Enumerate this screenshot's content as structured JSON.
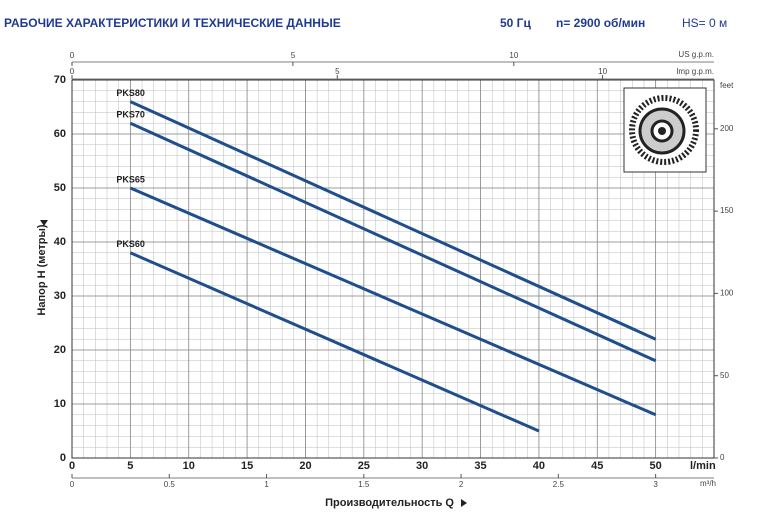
{
  "chart_data": {
    "type": "line",
    "title": "РАБОЧИЕ ХАРАКТЕРИСТИКИ И ТЕХНИЧЕСКИЕ ДАННЫЕ",
    "frequency": "50 Гц",
    "speed": "n= 2900 об/мин",
    "suction": "HS= 0 м",
    "x_label": "Производительность Q",
    "y_label": "Напор H (метры)",
    "x_unit": "l/min",
    "xlim": [
      0,
      55
    ],
    "xticks": [
      0,
      5,
      10,
      15,
      20,
      25,
      30,
      35,
      40,
      45,
      50
    ],
    "ylim": [
      0,
      70
    ],
    "yticks": [
      0,
      10,
      20,
      30,
      40,
      50,
      60,
      70
    ],
    "grid": true,
    "top_axis_us": {
      "label": "US g.p.m.",
      "lim": [
        0,
        14.53
      ],
      "ticks": [
        0,
        5,
        10
      ]
    },
    "top_axis_imp": {
      "label": "Imp g.p.m.",
      "lim": [
        0,
        12.1
      ],
      "ticks": [
        0,
        5,
        10
      ]
    },
    "bottom_axis_m3h": {
      "label": "m³/h",
      "lim": [
        0,
        3.3
      ],
      "ticks": [
        0,
        0.5,
        1,
        1.5,
        2,
        2.5,
        3
      ]
    },
    "y2label": "feet",
    "y2lim": [
      0,
      229.66
    ],
    "y2ticks": [
      0,
      50,
      100,
      150,
      200
    ],
    "series": [
      {
        "name": "PKS80",
        "color": "#1f4e8c",
        "x": [
          5,
          50
        ],
        "values": [
          66,
          22
        ]
      },
      {
        "name": "PKS70",
        "color": "#1f4e8c",
        "x": [
          5,
          50
        ],
        "values": [
          62,
          18
        ]
      },
      {
        "name": "PKS65",
        "color": "#1f4e8c",
        "x": [
          5,
          50
        ],
        "values": [
          50,
          8
        ]
      },
      {
        "name": "PKS60",
        "color": "#1f4e8c",
        "x": [
          5,
          40
        ],
        "values": [
          38,
          5
        ]
      }
    ]
  }
}
